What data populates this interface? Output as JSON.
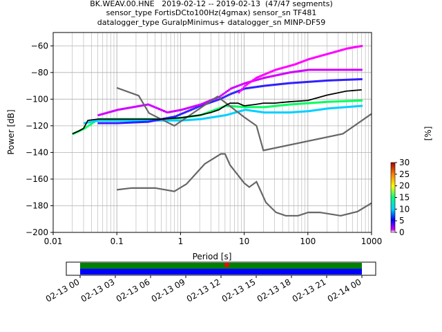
{
  "title_lines": [
    "BK.WEAV.00.HNE   2019-02-12 -- 2019-02-13  (47/47 segments)",
    "sensor_type FortisDCto100Hz(4gmax) sensor_sn TF481",
    "datalogger_type GuralpMinimus+ datalogger_sn MINP-DF59"
  ],
  "chart_data": [
    {
      "type": "heatmap",
      "xlabel": "Period [s]",
      "ylabel": "Power [dB]",
      "x_scale": "log",
      "xlim": [
        0.01,
        1000
      ],
      "ylim": [
        -200,
        -50
      ],
      "x_ticks": [
        0.01,
        0.1,
        1,
        10,
        100,
        1000
      ],
      "x_tick_labels": [
        "0.01",
        "0.1",
        "1",
        "10",
        "100",
        "1000"
      ],
      "y_ticks": [
        -200,
        -180,
        -160,
        -140,
        -120,
        -100,
        -80,
        -60
      ],
      "y_tick_labels": [
        "−200",
        "−180",
        "−160",
        "−140",
        "−120",
        "−100",
        "−80",
        "−60"
      ],
      "grid": true,
      "colorbar": {
        "label": "[%]",
        "range": [
          0,
          30
        ],
        "ticks": [
          0,
          5,
          10,
          15,
          20,
          25,
          30
        ],
        "tick_labels": [
          "0",
          "5",
          "10",
          "15",
          "20",
          "25",
          "30"
        ]
      },
      "noise_models": [
        {
          "x": [
            0.1,
            0.22,
            0.32,
            0.8,
            3.8,
            10,
            15.6,
            20,
            354,
            1000
          ],
          "y": [
            -91.5,
            -97.4,
            -110.5,
            -120,
            -98,
            -113.5,
            -120,
            -138.5,
            -126,
            -111
          ]
        },
        {
          "x": [
            0.1,
            0.17,
            0.4,
            0.8,
            1.24,
            2.4,
            4.3,
            5,
            6,
            10,
            12,
            15.6,
            21.9,
            31.6,
            45,
            70,
            101,
            154,
            328,
            600,
            1000
          ],
          "y": [
            -168,
            -166.7,
            -166.7,
            -169.2,
            -163.7,
            -148.6,
            -141.1,
            -141.1,
            -149.5,
            -163,
            -166,
            -162,
            -177.5,
            -185,
            -187.5,
            -187.5,
            -185,
            -185,
            -187.5,
            -184.4,
            -178
          ]
        }
      ],
      "mean_curve": {
        "x": [
          0.02,
          0.025,
          0.03,
          0.035,
          0.05,
          0.1,
          0.2,
          0.5,
          1,
          2,
          3,
          4,
          5,
          6,
          8,
          10,
          15,
          20,
          30,
          50,
          100,
          200,
          400,
          700
        ],
        "y": [
          -126,
          -124,
          -122,
          -116,
          -115,
          -115,
          -115,
          -115,
          -114,
          -112,
          -110,
          -108,
          -105,
          -103,
          -103,
          -105,
          -104,
          -103,
          -103,
          -102,
          -101,
          -97,
          -94,
          -93
        ]
      },
      "distribution_bands": [
        {
          "x": [
            0.02,
            0.03,
            0.05,
            0.1,
            0.2,
            0.5,
            1,
            2,
            5,
            10,
            20,
            50,
            100,
            200,
            700
          ],
          "y": [
            -126,
            -122,
            -115,
            -115,
            -115,
            -115,
            -114,
            -112,
            -105,
            -106,
            -106,
            -104,
            -103,
            -102,
            -101
          ]
        },
        {
          "x": [
            0.03,
            0.05,
            0.1,
            0.2,
            0.5,
            1,
            2,
            5,
            10,
            20,
            50,
            100,
            200,
            700
          ],
          "y": [
            -118,
            -116,
            -116,
            -116,
            -116,
            -116,
            -115,
            -112,
            -108,
            -110,
            -110,
            -109,
            -107,
            -105
          ]
        },
        {
          "x": [
            0.05,
            0.1,
            0.3,
            0.8,
            2,
            4,
            6,
            10,
            20,
            50,
            100,
            200,
            700
          ],
          "y": [
            -118,
            -118,
            -117,
            -113,
            -105,
            -100,
            -96,
            -92,
            -90,
            -88,
            -87,
            -86,
            -85
          ]
        },
        {
          "x": [
            0.05,
            0.1,
            0.3,
            0.6,
            1,
            2,
            4,
            6,
            10,
            20,
            50,
            100,
            200,
            700
          ],
          "y": [
            -112,
            -108,
            -104,
            -110,
            -108,
            -104,
            -98,
            -92,
            -88,
            -84,
            -80,
            -78,
            -78,
            -78
          ]
        },
        {
          "x": [
            8,
            10,
            15,
            30,
            60,
            100,
            200,
            400,
            700
          ],
          "y": [
            -95,
            -90,
            -84,
            -78,
            -74,
            -70,
            -66,
            -62,
            -60
          ]
        }
      ]
    },
    {
      "type": "timeline",
      "x_tick_labels": [
        "02-13 00",
        "02-13 03",
        "02-13 06",
        "02-13 09",
        "02-13 12",
        "02-13 15",
        "02-13 18",
        "02-13 21",
        "02-14 00"
      ],
      "range_hours": [
        0,
        24
      ],
      "bar_hours": [
        0,
        24
      ],
      "marker_hour": 12.5,
      "colors": {
        "top": "#008000",
        "bottom": "#0000ff",
        "marker": "#ff0000"
      }
    }
  ]
}
